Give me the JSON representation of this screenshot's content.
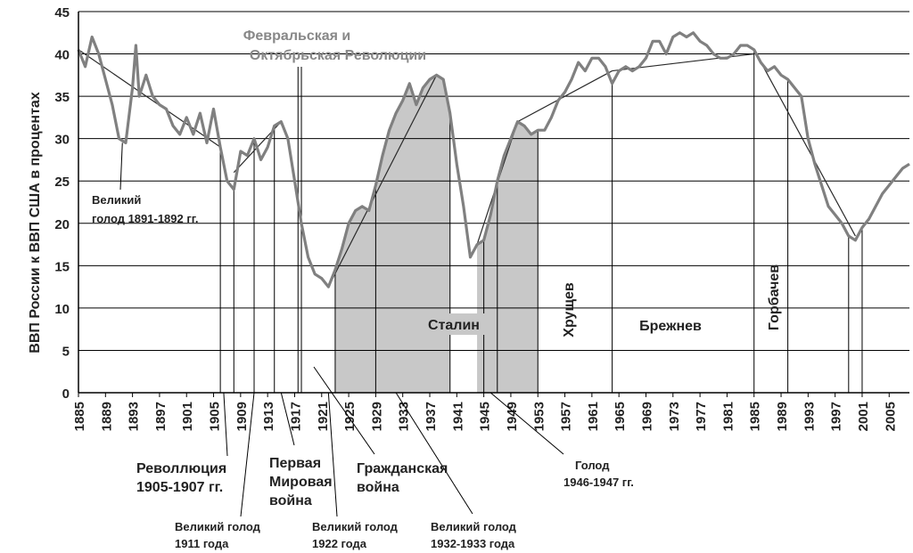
{
  "chart_data": {
    "type": "line",
    "title": "",
    "ylabel": "ВВП России к ВВП США в процентах",
    "xlabel": "",
    "xlim": [
      1885,
      2008
    ],
    "ylim": [
      0,
      45
    ],
    "yticks": [
      0,
      5,
      10,
      15,
      20,
      25,
      30,
      35,
      40,
      45
    ],
    "xticks": [
      1885,
      1889,
      1893,
      1897,
      1901,
      1905,
      1909,
      1913,
      1917,
      1921,
      1925,
      1929,
      1933,
      1937,
      1941,
      1945,
      1949,
      1953,
      1957,
      1961,
      1965,
      1969,
      1973,
      1977,
      1981,
      1985,
      1989,
      1993,
      1997,
      2001,
      2005
    ],
    "grid": "horizontal",
    "series": [
      {
        "values": [
          [
            1885,
            40.5
          ],
          [
            1886,
            38.5
          ],
          [
            1887,
            42.0
          ],
          [
            1888,
            40.0
          ],
          [
            1889,
            37.0
          ],
          [
            1890,
            34.0
          ],
          [
            1891,
            30.0
          ],
          [
            1892,
            29.5
          ],
          [
            1893,
            36.0
          ],
          [
            1893.5,
            41.0
          ],
          [
            1894,
            35.0
          ],
          [
            1895,
            37.5
          ],
          [
            1896,
            35.0
          ],
          [
            1897,
            34.0
          ],
          [
            1898,
            33.5
          ],
          [
            1899,
            31.5
          ],
          [
            1900,
            30.5
          ],
          [
            1901,
            32.5
          ],
          [
            1902,
            30.5
          ],
          [
            1903,
            33.0
          ],
          [
            1904,
            29.5
          ],
          [
            1905,
            33.5
          ],
          [
            1906,
            29.0
          ],
          [
            1907,
            25.0
          ],
          [
            1908,
            24.0
          ],
          [
            1909,
            28.5
          ],
          [
            1910,
            28.0
          ],
          [
            1911,
            30.0
          ],
          [
            1912,
            27.5
          ],
          [
            1913,
            29.0
          ],
          [
            1914,
            31.5
          ],
          [
            1915,
            32.0
          ],
          [
            1916,
            30.0
          ],
          [
            1917,
            25.0
          ],
          [
            1918,
            20.0
          ],
          [
            1919,
            16.0
          ],
          [
            1920,
            14.0
          ],
          [
            1921,
            13.5
          ],
          [
            1922,
            12.5
          ],
          [
            1923,
            14.5
          ],
          [
            1924,
            17.0
          ],
          [
            1925,
            20.0
          ],
          [
            1926,
            21.5
          ],
          [
            1927,
            22.0
          ],
          [
            1928,
            21.5
          ],
          [
            1929,
            24.5
          ],
          [
            1930,
            28.0
          ],
          [
            1931,
            31.0
          ],
          [
            1932,
            33.0
          ],
          [
            1933,
            34.5
          ],
          [
            1934,
            36.5
          ],
          [
            1935,
            34.0
          ],
          [
            1936,
            36.0
          ],
          [
            1937,
            37.0
          ],
          [
            1938,
            37.5
          ],
          [
            1939,
            37.0
          ],
          [
            1940,
            33.0
          ],
          [
            1941,
            27.0
          ],
          [
            1942,
            22.0
          ],
          [
            1943,
            16.0
          ],
          [
            1944,
            17.5
          ],
          [
            1945,
            18.0
          ],
          [
            1946,
            21.0
          ],
          [
            1947,
            25.0
          ],
          [
            1948,
            28.0
          ],
          [
            1949,
            30.0
          ],
          [
            1950,
            32.0
          ],
          [
            1951,
            31.5
          ],
          [
            1952,
            30.5
          ],
          [
            1953,
            31.0
          ],
          [
            1954,
            31.0
          ],
          [
            1955,
            32.5
          ],
          [
            1956,
            34.5
          ],
          [
            1957,
            35.5
          ],
          [
            1958,
            37.0
          ],
          [
            1959,
            39.0
          ],
          [
            1960,
            38.0
          ],
          [
            1961,
            39.5
          ],
          [
            1962,
            39.5
          ],
          [
            1963,
            38.5
          ],
          [
            1964,
            36.5
          ],
          [
            1965,
            38.0
          ],
          [
            1966,
            38.5
          ],
          [
            1967,
            38.0
          ],
          [
            1968,
            38.5
          ],
          [
            1969,
            39.5
          ],
          [
            1970,
            41.5
          ],
          [
            1971,
            41.5
          ],
          [
            1972,
            40.0
          ],
          [
            1973,
            42.0
          ],
          [
            1974,
            42.5
          ],
          [
            1975,
            42.0
          ],
          [
            1976,
            42.5
          ],
          [
            1977,
            41.5
          ],
          [
            1978,
            41.0
          ],
          [
            1979,
            40.0
          ],
          [
            1980,
            39.5
          ],
          [
            1981,
            39.5
          ],
          [
            1982,
            40.0
          ],
          [
            1983,
            41.0
          ],
          [
            1984,
            41.0
          ],
          [
            1985,
            40.5
          ],
          [
            1986,
            39.0
          ],
          [
            1987,
            38.0
          ],
          [
            1988,
            38.5
          ],
          [
            1989,
            37.5
          ],
          [
            1990,
            37.0
          ],
          [
            1991,
            36.0
          ],
          [
            1992,
            35.0
          ],
          [
            1993,
            30.0
          ],
          [
            1994,
            27.0
          ],
          [
            1995,
            24.5
          ],
          [
            1996,
            22.0
          ],
          [
            1997,
            21.0
          ],
          [
            1998,
            20.0
          ],
          [
            1999,
            18.5
          ],
          [
            2000,
            18.0
          ],
          [
            2001,
            19.5
          ],
          [
            2002,
            20.5
          ],
          [
            2003,
            22.0
          ],
          [
            2004,
            23.5
          ],
          [
            2005,
            24.5
          ],
          [
            2006,
            25.5
          ],
          [
            2007,
            26.5
          ],
          [
            2008,
            27.0
          ]
        ]
      }
    ],
    "trend_segments": [
      [
        [
          1885,
          40.5
        ],
        [
          1906,
          29.0
        ]
      ],
      [
        [
          1908,
          26.0
        ],
        [
          1915,
          32.0
        ]
      ],
      [
        [
          1922,
          12.5
        ],
        [
          1938,
          37.5
        ]
      ],
      [
        [
          1944,
          17.5
        ],
        [
          1950,
          32.0
        ]
      ],
      [
        [
          1950,
          32.0
        ],
        [
          1964,
          38.0
        ]
      ],
      [
        [
          1964,
          38.0
        ],
        [
          1985,
          40.0
        ]
      ],
      [
        [
          1985,
          40.5
        ],
        [
          2000,
          18.5
        ]
      ]
    ],
    "shaded_periods": [
      {
        "from": 1923,
        "to": 1940,
        "color": "#c8c8c8"
      },
      {
        "from": 1944,
        "to": 1953,
        "color": "#c8c8c8"
      }
    ],
    "period_lines": [
      1906,
      1908,
      1911,
      1914,
      1917.5,
      1918,
      1923,
      1929,
      1940,
      1945,
      1947,
      1953,
      1964,
      1985,
      1990,
      1999,
      2001
    ],
    "annotations": {
      "revolutions": "Февральская и\nОктябрьская Революции",
      "famine_1891": "Великий\nголод 1891-1892 гг.",
      "revolution_1905": "Револлюция\n1905-1907 гг.",
      "famine_1911": "Великий голод\n1911 года",
      "ww1": "Первая\nМировая\nвойна",
      "famine_1922": "Великий голод\n1922 года",
      "civil_war": "Гражданская\nвойна",
      "famine_1932": "Великий голод\n1932-1933 года",
      "stalin": "Сталин",
      "famine_1946": "Голод\n1946-1947 гг.",
      "khrushchev": "Хрущев",
      "brezhnev": "Брежнев",
      "gorbachev": "Горбачев"
    },
    "colors": {
      "series": "#808080",
      "trend": "#2a2a2a",
      "shade": "#c8c8c8",
      "grid": "#000000"
    }
  }
}
